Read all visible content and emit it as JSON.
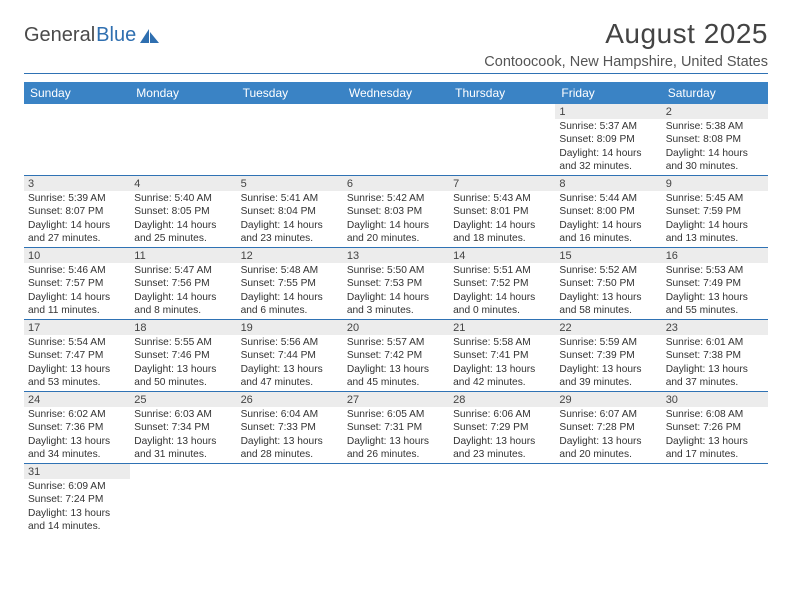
{
  "logo": {
    "text1": "General",
    "text2": "Blue"
  },
  "title": "August 2025",
  "subtitle": "Contoocook, New Hampshire, United States",
  "colors": {
    "header_bg": "#3a83c5",
    "header_fg": "#ffffff",
    "rule": "#2f72b4",
    "daynum_bg": "#ececec",
    "text": "#333333"
  },
  "day_headers": [
    "Sunday",
    "Monday",
    "Tuesday",
    "Wednesday",
    "Thursday",
    "Friday",
    "Saturday"
  ],
  "weeks": [
    [
      null,
      null,
      null,
      null,
      null,
      {
        "n": "1",
        "sr": "5:37 AM",
        "ss": "8:09 PM",
        "dl": "14 hours and 32 minutes."
      },
      {
        "n": "2",
        "sr": "5:38 AM",
        "ss": "8:08 PM",
        "dl": "14 hours and 30 minutes."
      }
    ],
    [
      {
        "n": "3",
        "sr": "5:39 AM",
        "ss": "8:07 PM",
        "dl": "14 hours and 27 minutes."
      },
      {
        "n": "4",
        "sr": "5:40 AM",
        "ss": "8:05 PM",
        "dl": "14 hours and 25 minutes."
      },
      {
        "n": "5",
        "sr": "5:41 AM",
        "ss": "8:04 PM",
        "dl": "14 hours and 23 minutes."
      },
      {
        "n": "6",
        "sr": "5:42 AM",
        "ss": "8:03 PM",
        "dl": "14 hours and 20 minutes."
      },
      {
        "n": "7",
        "sr": "5:43 AM",
        "ss": "8:01 PM",
        "dl": "14 hours and 18 minutes."
      },
      {
        "n": "8",
        "sr": "5:44 AM",
        "ss": "8:00 PM",
        "dl": "14 hours and 16 minutes."
      },
      {
        "n": "9",
        "sr": "5:45 AM",
        "ss": "7:59 PM",
        "dl": "14 hours and 13 minutes."
      }
    ],
    [
      {
        "n": "10",
        "sr": "5:46 AM",
        "ss": "7:57 PM",
        "dl": "14 hours and 11 minutes."
      },
      {
        "n": "11",
        "sr": "5:47 AM",
        "ss": "7:56 PM",
        "dl": "14 hours and 8 minutes."
      },
      {
        "n": "12",
        "sr": "5:48 AM",
        "ss": "7:55 PM",
        "dl": "14 hours and 6 minutes."
      },
      {
        "n": "13",
        "sr": "5:50 AM",
        "ss": "7:53 PM",
        "dl": "14 hours and 3 minutes."
      },
      {
        "n": "14",
        "sr": "5:51 AM",
        "ss": "7:52 PM",
        "dl": "14 hours and 0 minutes."
      },
      {
        "n": "15",
        "sr": "5:52 AM",
        "ss": "7:50 PM",
        "dl": "13 hours and 58 minutes."
      },
      {
        "n": "16",
        "sr": "5:53 AM",
        "ss": "7:49 PM",
        "dl": "13 hours and 55 minutes."
      }
    ],
    [
      {
        "n": "17",
        "sr": "5:54 AM",
        "ss": "7:47 PM",
        "dl": "13 hours and 53 minutes."
      },
      {
        "n": "18",
        "sr": "5:55 AM",
        "ss": "7:46 PM",
        "dl": "13 hours and 50 minutes."
      },
      {
        "n": "19",
        "sr": "5:56 AM",
        "ss": "7:44 PM",
        "dl": "13 hours and 47 minutes."
      },
      {
        "n": "20",
        "sr": "5:57 AM",
        "ss": "7:42 PM",
        "dl": "13 hours and 45 minutes."
      },
      {
        "n": "21",
        "sr": "5:58 AM",
        "ss": "7:41 PM",
        "dl": "13 hours and 42 minutes."
      },
      {
        "n": "22",
        "sr": "5:59 AM",
        "ss": "7:39 PM",
        "dl": "13 hours and 39 minutes."
      },
      {
        "n": "23",
        "sr": "6:01 AM",
        "ss": "7:38 PM",
        "dl": "13 hours and 37 minutes."
      }
    ],
    [
      {
        "n": "24",
        "sr": "6:02 AM",
        "ss": "7:36 PM",
        "dl": "13 hours and 34 minutes."
      },
      {
        "n": "25",
        "sr": "6:03 AM",
        "ss": "7:34 PM",
        "dl": "13 hours and 31 minutes."
      },
      {
        "n": "26",
        "sr": "6:04 AM",
        "ss": "7:33 PM",
        "dl": "13 hours and 28 minutes."
      },
      {
        "n": "27",
        "sr": "6:05 AM",
        "ss": "7:31 PM",
        "dl": "13 hours and 26 minutes."
      },
      {
        "n": "28",
        "sr": "6:06 AM",
        "ss": "7:29 PM",
        "dl": "13 hours and 23 minutes."
      },
      {
        "n": "29",
        "sr": "6:07 AM",
        "ss": "7:28 PM",
        "dl": "13 hours and 20 minutes."
      },
      {
        "n": "30",
        "sr": "6:08 AM",
        "ss": "7:26 PM",
        "dl": "13 hours and 17 minutes."
      }
    ],
    [
      {
        "n": "31",
        "sr": "6:09 AM",
        "ss": "7:24 PM",
        "dl": "13 hours and 14 minutes."
      },
      null,
      null,
      null,
      null,
      null,
      null
    ]
  ],
  "labels": {
    "sunrise": "Sunrise:",
    "sunset": "Sunset:",
    "daylight": "Daylight:"
  }
}
